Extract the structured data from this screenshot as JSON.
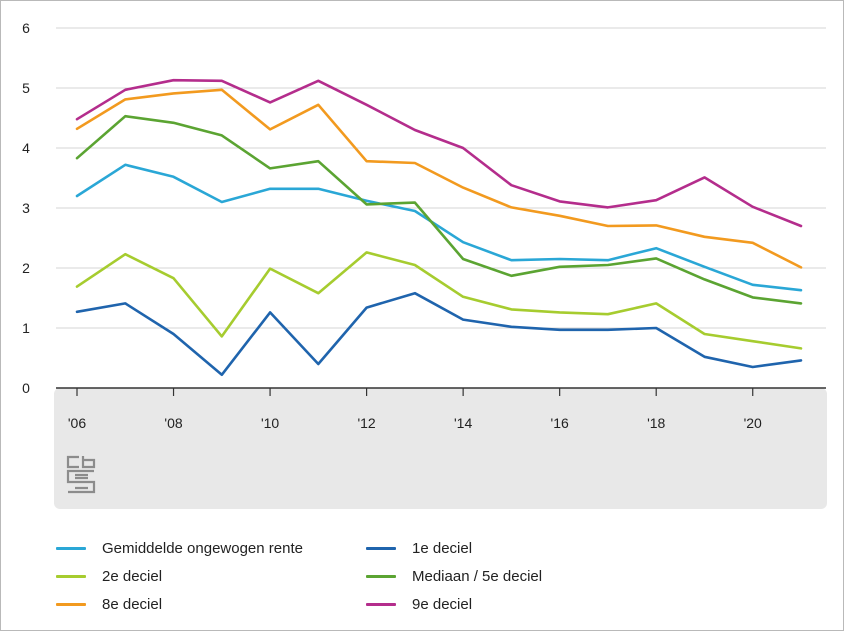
{
  "chart_data": {
    "type": "line",
    "x": [
      2006,
      2007,
      2008,
      2009,
      2010,
      2011,
      2012,
      2013,
      2014,
      2015,
      2016,
      2017,
      2018,
      2019,
      2020,
      2021
    ],
    "xticks": [
      {
        "value": 2006,
        "label": "'06"
      },
      {
        "value": 2008,
        "label": "'08"
      },
      {
        "value": 2010,
        "label": "'10"
      },
      {
        "value": 2012,
        "label": "'12"
      },
      {
        "value": 2014,
        "label": "'14"
      },
      {
        "value": 2016,
        "label": "'16"
      },
      {
        "value": 2018,
        "label": "'18"
      },
      {
        "value": 2020,
        "label": "'20"
      }
    ],
    "yticks": [
      0,
      1,
      2,
      3,
      4,
      5,
      6
    ],
    "ylim": [
      0,
      6
    ],
    "grid": "horizontal",
    "legend_position": "bottom",
    "series": [
      {
        "name": "Gemiddelde ongewogen rente",
        "color": "#2aa7d6",
        "values": [
          3.2,
          3.72,
          3.52,
          3.1,
          3.32,
          3.32,
          3.12,
          2.95,
          2.43,
          2.13,
          2.15,
          2.13,
          2.33,
          2.02,
          1.72,
          1.63
        ]
      },
      {
        "name": "1e deciel",
        "color": "#1f64ad",
        "values": [
          1.27,
          1.41,
          0.9,
          0.22,
          1.26,
          0.4,
          1.34,
          1.58,
          1.14,
          1.02,
          0.97,
          0.97,
          1.0,
          0.52,
          0.35,
          0.46
        ]
      },
      {
        "name": "2e deciel",
        "color": "#a6cc2f",
        "values": [
          1.69,
          2.23,
          1.83,
          0.86,
          1.99,
          1.58,
          2.26,
          2.05,
          1.52,
          1.31,
          1.26,
          1.23,
          1.41,
          0.9,
          0.78,
          0.66
        ]
      },
      {
        "name": "Mediaan / 5e deciel",
        "color": "#5ba432",
        "values": [
          3.83,
          4.53,
          4.42,
          4.21,
          3.66,
          3.78,
          3.06,
          3.09,
          2.15,
          1.87,
          2.02,
          2.05,
          2.16,
          1.81,
          1.51,
          1.41
        ]
      },
      {
        "name": "8e deciel",
        "color": "#f29a1f",
        "values": [
          4.32,
          4.81,
          4.91,
          4.97,
          4.31,
          4.72,
          3.78,
          3.75,
          3.34,
          3.01,
          2.87,
          2.7,
          2.71,
          2.52,
          2.42,
          2.01
        ]
      },
      {
        "name": "9e deciel",
        "color": "#b42d8c",
        "values": [
          4.48,
          4.97,
          5.13,
          5.12,
          4.76,
          5.12,
          4.72,
          4.3,
          4.0,
          3.38,
          3.11,
          3.01,
          3.13,
          3.51,
          3.02,
          2.7
        ]
      }
    ]
  },
  "legend_order": [
    "Gemiddelde ongewogen rente",
    "1e deciel",
    "2e deciel",
    "Mediaan / 5e deciel",
    "8e deciel",
    "9e deciel"
  ],
  "logo": {
    "text": "cbs"
  }
}
